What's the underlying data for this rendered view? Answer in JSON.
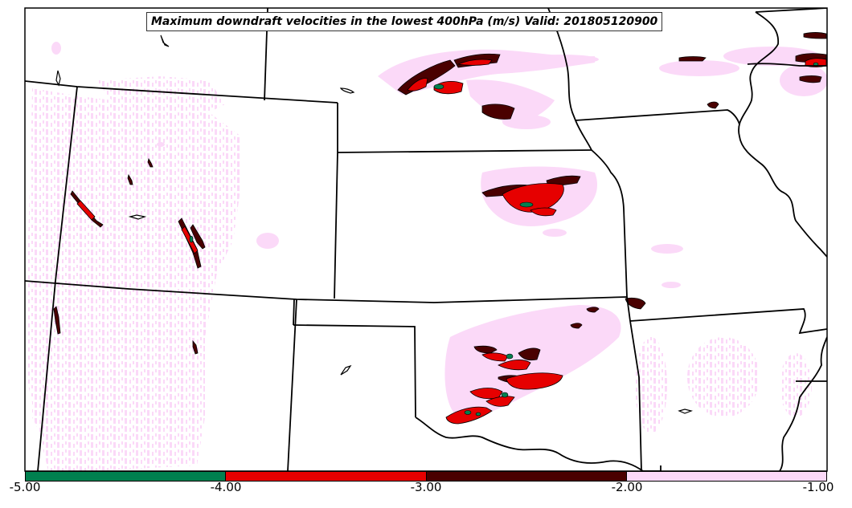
{
  "title": "Maximum downdraft velocities in the lowest 400hPa (m/s) Valid: 201805120900",
  "colorbar": {
    "segments": [
      {
        "range": "-5.00 to -4.00",
        "color": "#00804f"
      },
      {
        "range": "-4.00 to -3.00",
        "color": "#e60000"
      },
      {
        "range": "-3.00 to -2.00",
        "color": "#4a0000"
      },
      {
        "range": "-2.00 to -1.00",
        "color": "#fbd9f8"
      }
    ],
    "ticks": [
      "-5.00",
      "-4.00",
      "-3.00",
      "-2.00",
      "-1.00"
    ]
  },
  "colors": {
    "light_pink": "#fbd9f8",
    "red": "#e60000",
    "dark_red": "#4a0000",
    "green": "#00804f",
    "boundaries": "#000000"
  }
}
